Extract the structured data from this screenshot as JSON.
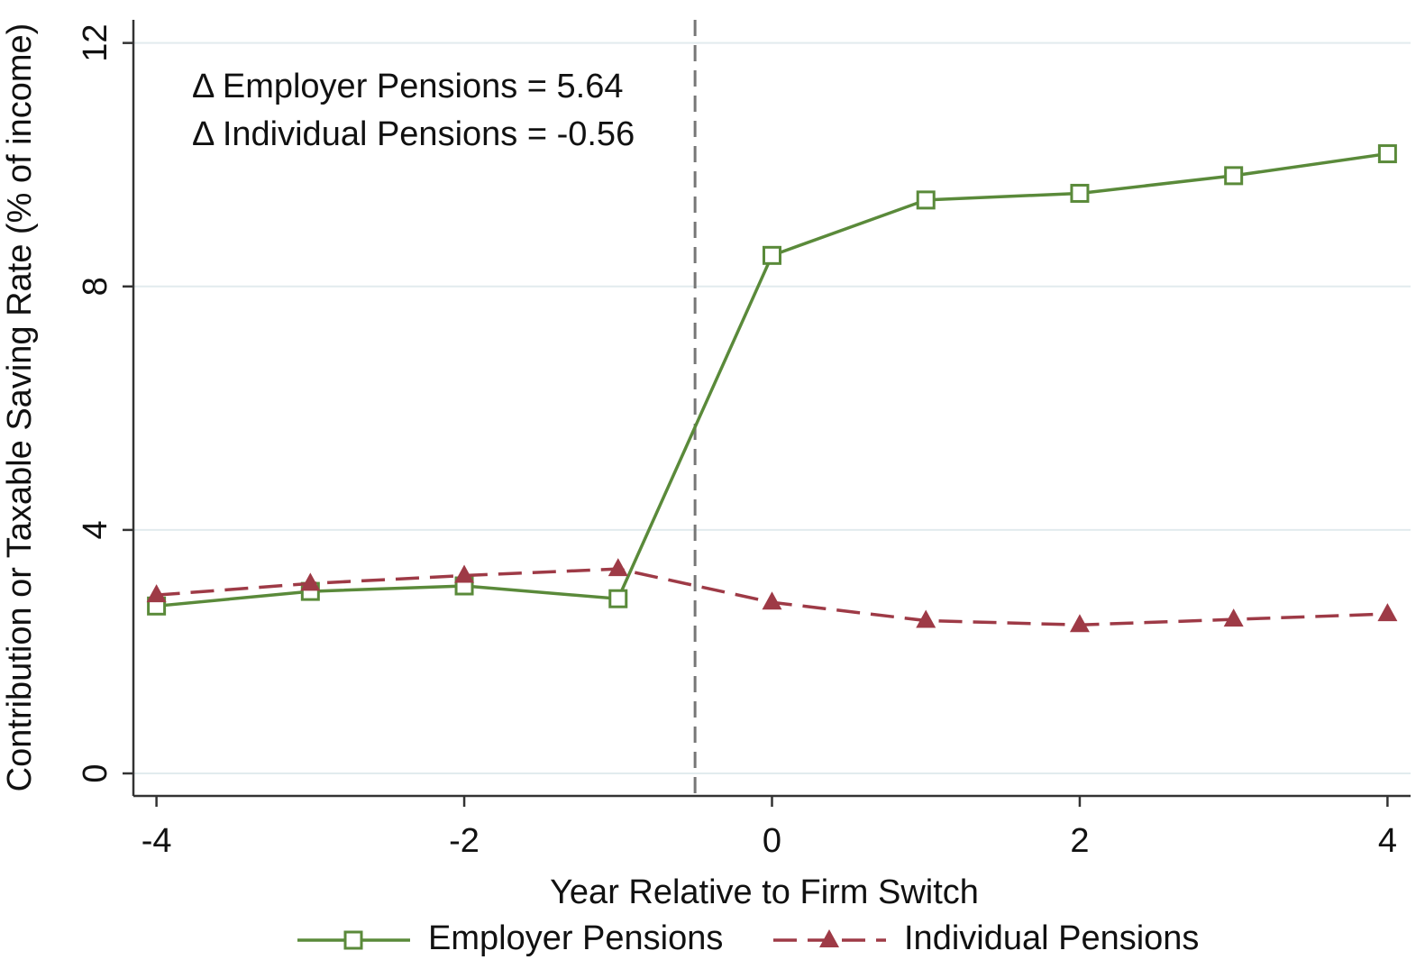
{
  "chart_data": {
    "type": "line",
    "xlabel": "Year Relative to Firm Switch",
    "ylabel": "Contribution or Taxable Saving Rate (% of income)",
    "annotations": [
      "Δ Employer Pensions = 5.64",
      "Δ Individual Pensions = -0.56"
    ],
    "x": [
      -4,
      -3,
      -2,
      -1,
      0,
      1,
      2,
      3,
      4
    ],
    "series": [
      {
        "name": "Employer Pensions",
        "color": "#5a8a3a",
        "marker": "square",
        "dash": false,
        "values": [
          2.75,
          2.99,
          3.08,
          2.87,
          8.51,
          9.42,
          9.53,
          9.82,
          10.18
        ]
      },
      {
        "name": "Individual Pensions",
        "color": "#9e3a46",
        "marker": "triangle",
        "dash": true,
        "values": [
          2.93,
          3.12,
          3.25,
          3.36,
          2.81,
          2.51,
          2.44,
          2.53,
          2.62
        ]
      }
    ],
    "xlim": [
      -4.15,
      4.15
    ],
    "xticks": [
      -4,
      -2,
      0,
      2,
      4
    ],
    "ylim": [
      -0.37,
      12.38
    ],
    "yticks": [
      0,
      4,
      8,
      12
    ],
    "vline": -0.5,
    "grid": true,
    "legend": "bottom"
  }
}
